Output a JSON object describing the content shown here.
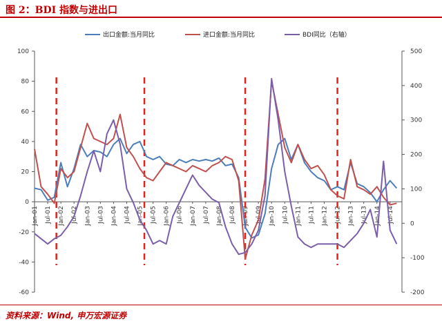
{
  "header": {
    "title": "图 2：BDI 指数与进出口"
  },
  "footer": {
    "source": "资料来源：Wind, 申万宏源证券"
  },
  "chart_data": {
    "type": "line",
    "title": "图 2：BDI 指数与进出口",
    "x_tick_labels": [
      "Jan-01",
      "Jul-01",
      "Jan-02",
      "Jul-02",
      "Jan-03",
      "Jul-03",
      "Jan-04",
      "Jul-04",
      "Jan-05",
      "Jul-05",
      "Jan-06",
      "Jul-06",
      "Jan-07",
      "Jul-07",
      "Jan-08",
      "Jul-08",
      "Jan-09",
      "Jul-09",
      "Jan-10",
      "Jul-10",
      "Jan-11",
      "Jul-11",
      "Jan-12",
      "Jul-12",
      "Jan-13",
      "Jul-13",
      "Jan-14",
      "Jul-14"
    ],
    "y_left": {
      "min": -60,
      "max": 100,
      "ticks": [
        100,
        80,
        60,
        40,
        20,
        0,
        -20,
        -40,
        -60
      ]
    },
    "y_right": {
      "min": -200,
      "max": 500,
      "ticks": [
        500,
        400,
        300,
        200,
        100,
        0,
        -100,
        -200
      ]
    },
    "legend_position": "top",
    "grid": false,
    "reference_lines_x": [
      2001.83,
      2005.17,
      2009.0,
      2012.5
    ],
    "series": [
      {
        "name": "出口金额:当月同比",
        "axis": "left",
        "color": "#4a7ebb",
        "x": [
          2001.0,
          2001.25,
          2001.5,
          2001.75,
          2002.0,
          2002.25,
          2002.5,
          2002.75,
          2003.0,
          2003.25,
          2003.5,
          2003.75,
          2004.0,
          2004.25,
          2004.5,
          2004.75,
          2005.0,
          2005.25,
          2005.5,
          2005.75,
          2006.0,
          2006.25,
          2006.5,
          2006.75,
          2007.0,
          2007.25,
          2007.5,
          2007.75,
          2008.0,
          2008.25,
          2008.5,
          2008.75,
          2009.0,
          2009.25,
          2009.5,
          2009.75,
          2010.0,
          2010.25,
          2010.5,
          2010.75,
          2011.0,
          2011.25,
          2011.5,
          2011.75,
          2012.0,
          2012.25,
          2012.5,
          2012.75,
          2013.0,
          2013.25,
          2013.5,
          2013.75,
          2014.0,
          2014.25,
          2014.5,
          2014.75
        ],
        "values": [
          9,
          8,
          1,
          3,
          26,
          10,
          22,
          38,
          30,
          34,
          33,
          30,
          38,
          42,
          32,
          38,
          40,
          30,
          28,
          30,
          25,
          24,
          28,
          26,
          28,
          27,
          28,
          27,
          29,
          24,
          25,
          16,
          -17,
          -24,
          -22,
          -8,
          22,
          38,
          42,
          28,
          38,
          26,
          20,
          16,
          14,
          8,
          10,
          8,
          26,
          12,
          10,
          6,
          0,
          8,
          14,
          9
        ]
      },
      {
        "name": "进口金额:当月同比",
        "axis": "left",
        "color": "#c0504d",
        "x": [
          2001.0,
          2001.25,
          2001.5,
          2001.75,
          2002.0,
          2002.25,
          2002.5,
          2002.75,
          2003.0,
          2003.25,
          2003.5,
          2003.75,
          2004.0,
          2004.25,
          2004.5,
          2004.75,
          2005.0,
          2005.25,
          2005.5,
          2005.75,
          2006.0,
          2006.25,
          2006.5,
          2006.75,
          2007.0,
          2007.25,
          2007.5,
          2007.75,
          2008.0,
          2008.25,
          2008.5,
          2008.75,
          2009.0,
          2009.25,
          2009.5,
          2009.75,
          2010.0,
          2010.25,
          2010.5,
          2010.75,
          2011.0,
          2011.25,
          2011.5,
          2011.75,
          2012.0,
          2012.25,
          2012.5,
          2012.75,
          2013.0,
          2013.25,
          2013.5,
          2013.75,
          2014.0,
          2014.25,
          2014.5,
          2014.75
        ],
        "values": [
          35,
          10,
          5,
          -1,
          22,
          16,
          20,
          36,
          52,
          42,
          40,
          38,
          42,
          58,
          36,
          30,
          22,
          16,
          14,
          20,
          26,
          24,
          22,
          20,
          24,
          22,
          20,
          24,
          26,
          30,
          28,
          14,
          -38,
          -22,
          -12,
          15,
          80,
          58,
          36,
          26,
          38,
          28,
          22,
          24,
          18,
          8,
          4,
          2,
          28,
          10,
          8,
          5,
          10,
          3,
          -2,
          -1
        ]
      },
      {
        "name": "BDI同比（右轴）",
        "axis": "right",
        "color": "#7b5ea8",
        "x": [
          2001.0,
          2001.25,
          2001.5,
          2001.75,
          2002.0,
          2002.25,
          2002.5,
          2002.75,
          2003.0,
          2003.25,
          2003.5,
          2003.75,
          2004.0,
          2004.25,
          2004.5,
          2004.75,
          2005.0,
          2005.25,
          2005.5,
          2005.75,
          2006.0,
          2006.25,
          2006.5,
          2006.75,
          2007.0,
          2007.25,
          2007.5,
          2007.75,
          2008.0,
          2008.25,
          2008.5,
          2008.75,
          2009.0,
          2009.25,
          2009.5,
          2009.75,
          2010.0,
          2010.25,
          2010.5,
          2010.75,
          2011.0,
          2011.25,
          2011.5,
          2011.75,
          2012.0,
          2012.25,
          2012.5,
          2012.75,
          2013.0,
          2013.25,
          2013.5,
          2013.75,
          2014.0,
          2014.25,
          2014.5,
          2014.75
        ],
        "values": [
          -30,
          -45,
          -60,
          -45,
          -35,
          -10,
          20,
          80,
          150,
          210,
          150,
          260,
          300,
          230,
          100,
          60,
          10,
          -20,
          -60,
          -50,
          -60,
          20,
          60,
          100,
          140,
          110,
          90,
          70,
          60,
          -10,
          -60,
          -90,
          -85,
          -60,
          -20,
          80,
          420,
          300,
          150,
          50,
          -40,
          -60,
          -70,
          -60,
          -60,
          -60,
          -60,
          -70,
          -50,
          -30,
          0,
          40,
          -40,
          180,
          -20,
          -60
        ]
      }
    ]
  }
}
